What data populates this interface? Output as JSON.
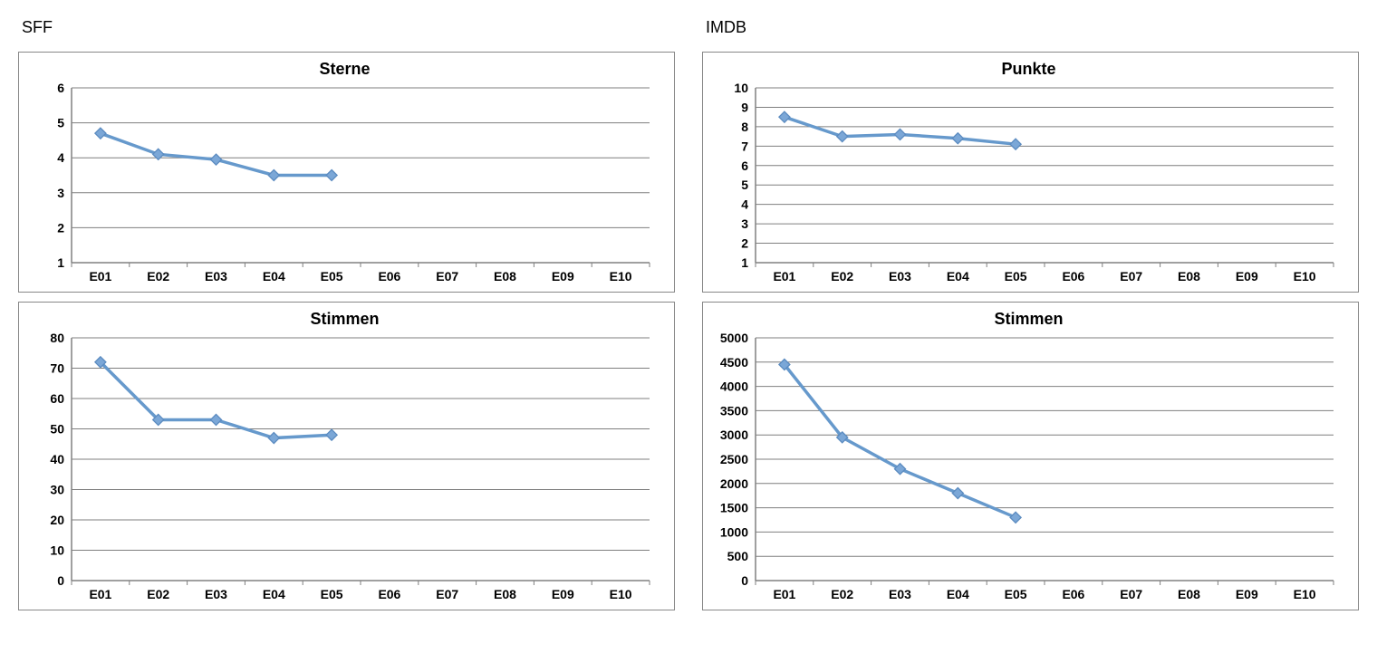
{
  "left_label": "SFF",
  "right_label": "IMDB",
  "categories": [
    "E01",
    "E02",
    "E03",
    "E04",
    "E05",
    "E06",
    "E07",
    "E08",
    "E09",
    "E10"
  ],
  "colors": {
    "line": "#6699cc",
    "marker_fill": "#7ba7d7",
    "marker_stroke": "#5b8bc0",
    "grid": "#7f7f7f",
    "border": "#808080",
    "background": "#ffffff",
    "title": "#000000"
  },
  "charts": [
    {
      "id": "sff-sterne",
      "title": "Sterne",
      "type": "line",
      "ymin": 1,
      "ymax": 6,
      "ystep": 1,
      "values": [
        4.7,
        4.1,
        3.95,
        3.5,
        3.5
      ],
      "title_fontsize": 18,
      "label_fontsize": 14,
      "marker": "diamond",
      "marker_size": 6,
      "line_width": 3.5
    },
    {
      "id": "imdb-punkte",
      "title": "Punkte",
      "type": "line",
      "ymin": 1,
      "ymax": 10,
      "ystep": 1,
      "values": [
        8.5,
        7.5,
        7.6,
        7.4,
        7.1
      ],
      "title_fontsize": 18,
      "label_fontsize": 14,
      "marker": "diamond",
      "marker_size": 6,
      "line_width": 3.5
    },
    {
      "id": "sff-stimmen",
      "title": "Stimmen",
      "type": "line",
      "ymin": 0,
      "ymax": 80,
      "ystep": 10,
      "values": [
        72,
        53,
        53,
        47,
        48
      ],
      "title_fontsize": 18,
      "label_fontsize": 14,
      "marker": "diamond",
      "marker_size": 6,
      "line_width": 3.5
    },
    {
      "id": "imdb-stimmen",
      "title": "Stimmen",
      "type": "line",
      "ymin": 0,
      "ymax": 5000,
      "ystep": 500,
      "values": [
        4450,
        2950,
        2300,
        1800,
        1300
      ],
      "title_fontsize": 18,
      "label_fontsize": 14,
      "marker": "diamond",
      "marker_size": 6,
      "line_width": 3.5
    }
  ]
}
